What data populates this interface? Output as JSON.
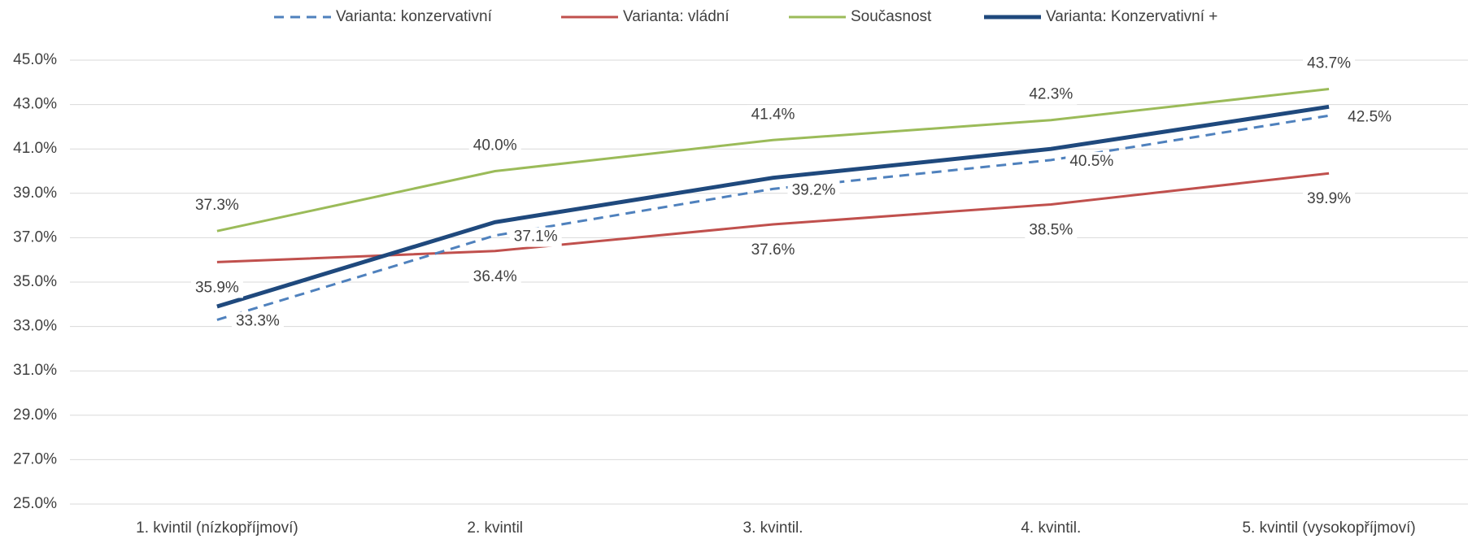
{
  "chart_data": {
    "type": "line",
    "categories": [
      "1. kvintil (nízkopříjmoví)",
      "2. kvintil",
      "3. kvintil.",
      "4. kvintil.",
      "5. kvintil (vysokopříjmoví)"
    ],
    "series": [
      {
        "name": "Varianta: konzervativní",
        "color": "#4f81bd",
        "dash": true,
        "width": 3,
        "values": [
          33.3,
          37.1,
          39.2,
          40.5,
          42.5
        ],
        "value_labels": [
          "33.3%",
          "37.1%",
          "39.2%",
          "40.5%",
          "42.5%"
        ]
      },
      {
        "name": "Varianta: vládní",
        "color": "#c0504d",
        "width": 3,
        "values": [
          35.9,
          36.4,
          37.6,
          38.5,
          39.9
        ],
        "value_labels": [
          "35.9%",
          "36.4%",
          "37.6%",
          "38.5%",
          "39.9%"
        ]
      },
      {
        "name": "Současnost",
        "color": "#9bbb59",
        "width": 3,
        "values": [
          37.3,
          40.0,
          41.4,
          42.3,
          43.7
        ],
        "value_labels": [
          "37.3%",
          "40.0%",
          "41.4%",
          "42.3%",
          "43.7%"
        ]
      },
      {
        "name": "Varianta: Konzervativní +",
        "color": "#1f497d",
        "width": 5,
        "values": [
          33.9,
          37.7,
          39.7,
          41.0,
          42.9
        ]
      }
    ],
    "ylim": [
      25,
      45
    ],
    "yticks": [
      {
        "value": 25,
        "label": "25.0%"
      },
      {
        "value": 27,
        "label": "27.0%"
      },
      {
        "value": 29,
        "label": "29.0%"
      },
      {
        "value": 31,
        "label": "31.0%"
      },
      {
        "value": 33,
        "label": "33.0%"
      },
      {
        "value": 35,
        "label": "35.0%"
      },
      {
        "value": 37,
        "label": "37.0%"
      },
      {
        "value": 39,
        "label": "39.0%"
      },
      {
        "value": 41,
        "label": "41.0%"
      },
      {
        "value": 43,
        "label": "43.0%"
      },
      {
        "value": 45,
        "label": "45.0%"
      }
    ],
    "grid": true,
    "legend": "top"
  }
}
